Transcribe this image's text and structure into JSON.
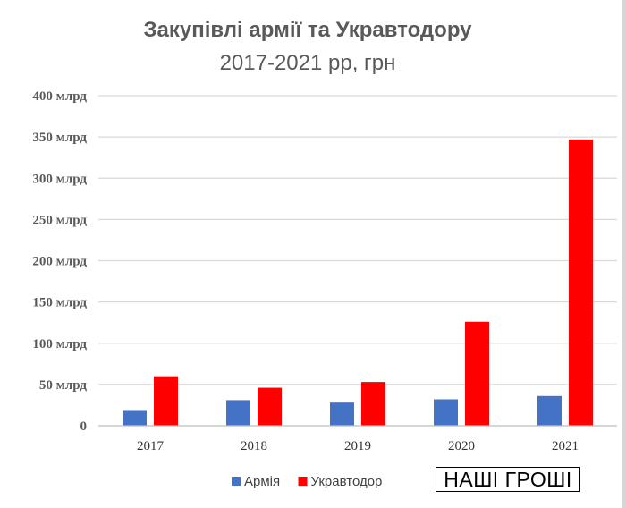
{
  "chart_data": {
    "type": "bar",
    "title": "Закупівлі армії та Укравтодору",
    "subtitle": "2017-2021 рр, грн",
    "categories": [
      "2017",
      "2018",
      "2019",
      "2020",
      "2021"
    ],
    "series": [
      {
        "name": "Армія",
        "color": "#4472c4",
        "values": [
          19,
          31,
          28,
          32,
          36
        ]
      },
      {
        "name": "Укравтодор",
        "color": "#ff0000",
        "values": [
          60,
          46,
          53,
          126,
          347
        ]
      }
    ],
    "ylim": [
      0,
      400
    ],
    "yticks": [
      {
        "value": 0,
        "label": "0"
      },
      {
        "value": 50,
        "label": "50 млрд"
      },
      {
        "value": 100,
        "label": "100 млрд"
      },
      {
        "value": 150,
        "label": "150 млрд"
      },
      {
        "value": 200,
        "label": "200 млрд"
      },
      {
        "value": 250,
        "label": "250 млрд"
      },
      {
        "value": 300,
        "label": "300 млрд"
      },
      {
        "value": 350,
        "label": "350 млрд"
      },
      {
        "value": 400,
        "label": "400 млрд"
      }
    ],
    "grid": true,
    "legend": "bottom"
  },
  "watermark": "НАШІ ГРОШІ"
}
